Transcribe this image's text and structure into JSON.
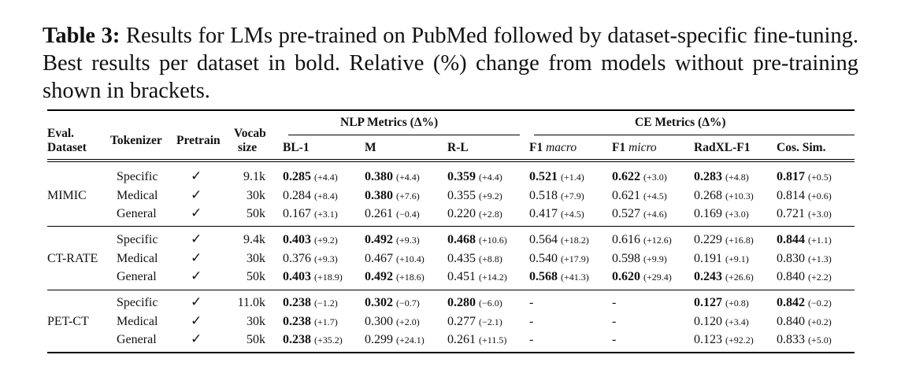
{
  "caption": {
    "label": "Table 3:",
    "text": " Results for LMs pre-trained on PubMed followed by dataset-specific fine-tuning. Best results per dataset in bold. Relative (%) change from models without pre-training shown in brackets."
  },
  "headers": {
    "eval_dataset_1": "Eval.",
    "eval_dataset_2": "Dataset",
    "tokenizer": "Tokenizer",
    "pretrain": "Pretrain",
    "vocab_1": "Vocab",
    "vocab_2": "size",
    "nlp_group": "NLP Metrics (Δ%)",
    "ce_group": "CE Metrics (Δ%)",
    "bl1": "BL-1",
    "m": "M",
    "rl": "R-L",
    "f1_macro_prefix": "F1 ",
    "f1_macro_it": "macro",
    "f1_micro_prefix": "F1 ",
    "f1_micro_it": "micro",
    "radxl": "RadXL-F1",
    "cos": "Cos. Sim."
  },
  "groups": [
    {
      "dataset": "MIMIC",
      "rows": [
        {
          "tokenizer": "Specific",
          "pretrain": "✓",
          "vocab": "9.1k",
          "cells": [
            {
              "v": "0.285",
              "d": "(+4.4)",
              "b": true
            },
            {
              "v": "0.380",
              "d": "(+4.4)",
              "b": true
            },
            {
              "v": "0.359",
              "d": "(+4.4)",
              "b": true
            },
            {
              "v": "0.521",
              "d": "(+1.4)",
              "b": true
            },
            {
              "v": "0.622",
              "d": "(+3.0)",
              "b": true
            },
            {
              "v": "0.283",
              "d": "(+4.8)",
              "b": true
            },
            {
              "v": "0.817",
              "d": "(+0.5)",
              "b": true
            }
          ]
        },
        {
          "tokenizer": "Medical",
          "pretrain": "✓",
          "vocab": "30k",
          "cells": [
            {
              "v": "0.284",
              "d": "(+8.4)",
              "b": false
            },
            {
              "v": "0.380",
              "d": "(+7.6)",
              "b": true
            },
            {
              "v": "0.355",
              "d": "(+9.2)",
              "b": false
            },
            {
              "v": "0.518",
              "d": "(+7.9)",
              "b": false
            },
            {
              "v": "0.621",
              "d": "(+4.5)",
              "b": false
            },
            {
              "v": "0.268",
              "d": "(+10.3)",
              "b": false
            },
            {
              "v": "0.814",
              "d": "(+0.6)",
              "b": false
            }
          ]
        },
        {
          "tokenizer": "General",
          "pretrain": "✓",
          "vocab": "50k",
          "cells": [
            {
              "v": "0.167",
              "d": "(+3.1)",
              "b": false
            },
            {
              "v": "0.261",
              "d": "(−0.4)",
              "b": false
            },
            {
              "v": "0.220",
              "d": "(+2.8)",
              "b": false
            },
            {
              "v": "0.417",
              "d": "(+4.5)",
              "b": false
            },
            {
              "v": "0.527",
              "d": "(+4.6)",
              "b": false
            },
            {
              "v": "0.169",
              "d": "(+3.0)",
              "b": false
            },
            {
              "v": "0.721",
              "d": "(+3.0)",
              "b": false
            }
          ]
        }
      ]
    },
    {
      "dataset": "CT-RATE",
      "rows": [
        {
          "tokenizer": "Specific",
          "pretrain": "✓",
          "vocab": "9.4k",
          "cells": [
            {
              "v": "0.403",
              "d": "(+9.2)",
              "b": true
            },
            {
              "v": "0.492",
              "d": "(+9.3)",
              "b": true
            },
            {
              "v": "0.468",
              "d": "(+10.6)",
              "b": true
            },
            {
              "v": "0.564",
              "d": "(+18.2)",
              "b": false
            },
            {
              "v": "0.616",
              "d": "(+12.6)",
              "b": false
            },
            {
              "v": "0.229",
              "d": "(+16.8)",
              "b": false
            },
            {
              "v": "0.844",
              "d": "(+1.1)",
              "b": true
            }
          ]
        },
        {
          "tokenizer": "Medical",
          "pretrain": "✓",
          "vocab": "30k",
          "cells": [
            {
              "v": "0.376",
              "d": "(+9.3)",
              "b": false
            },
            {
              "v": "0.467",
              "d": "(+10.4)",
              "b": false
            },
            {
              "v": "0.435",
              "d": "(+8.8)",
              "b": false
            },
            {
              "v": "0.540",
              "d": "(+17.9)",
              "b": false
            },
            {
              "v": "0.598",
              "d": "(+9.9)",
              "b": false
            },
            {
              "v": "0.191",
              "d": "(+9.1)",
              "b": false
            },
            {
              "v": "0.830",
              "d": "(+1.3)",
              "b": false
            }
          ]
        },
        {
          "tokenizer": "General",
          "pretrain": "✓",
          "vocab": "50k",
          "cells": [
            {
              "v": "0.403",
              "d": "(+18.9)",
              "b": true
            },
            {
              "v": "0.492",
              "d": "(+18.6)",
              "b": true
            },
            {
              "v": "0.451",
              "d": "(+14.2)",
              "b": false
            },
            {
              "v": "0.568",
              "d": "(+41.3)",
              "b": true
            },
            {
              "v": "0.620",
              "d": "(+29.4)",
              "b": true
            },
            {
              "v": "0.243",
              "d": "(+26.6)",
              "b": true
            },
            {
              "v": "0.840",
              "d": "(+2.2)",
              "b": false
            }
          ]
        }
      ]
    },
    {
      "dataset": "PET-CT",
      "rows": [
        {
          "tokenizer": "Specific",
          "pretrain": "✓",
          "vocab": "11.0k",
          "cells": [
            {
              "v": "0.238",
              "d": "(−1.2)",
              "b": true
            },
            {
              "v": "0.302",
              "d": "(−0.7)",
              "b": true
            },
            {
              "v": "0.280",
              "d": "(−6.0)",
              "b": true
            },
            {
              "v": "-",
              "d": "",
              "b": false
            },
            {
              "v": "-",
              "d": "",
              "b": false
            },
            {
              "v": "0.127",
              "d": "(+0.8)",
              "b": true
            },
            {
              "v": "0.842",
              "d": "(−0.2)",
              "b": true
            }
          ]
        },
        {
          "tokenizer": "Medical",
          "pretrain": "✓",
          "vocab": "30k",
          "cells": [
            {
              "v": "0.238",
              "d": "(+1.7)",
              "b": true
            },
            {
              "v": "0.300",
              "d": "(+2.0)",
              "b": false
            },
            {
              "v": "0.277",
              "d": "(−2.1)",
              "b": false
            },
            {
              "v": "-",
              "d": "",
              "b": false
            },
            {
              "v": "-",
              "d": "",
              "b": false
            },
            {
              "v": "0.120",
              "d": "(+3.4)",
              "b": false
            },
            {
              "v": "0.840",
              "d": "(+0.2)",
              "b": false
            }
          ]
        },
        {
          "tokenizer": "General",
          "pretrain": "✓",
          "vocab": "50k",
          "cells": [
            {
              "v": "0.238",
              "d": "(+35.2)",
              "b": true
            },
            {
              "v": "0.299",
              "d": "(+24.1)",
              "b": false
            },
            {
              "v": "0.261",
              "d": "(+11.5)",
              "b": false
            },
            {
              "v": "-",
              "d": "",
              "b": false
            },
            {
              "v": "-",
              "d": "",
              "b": false
            },
            {
              "v": "0.123",
              "d": "(+92.2)",
              "b": false
            },
            {
              "v": "0.833",
              "d": "(+5.0)",
              "b": false
            }
          ]
        }
      ]
    }
  ]
}
